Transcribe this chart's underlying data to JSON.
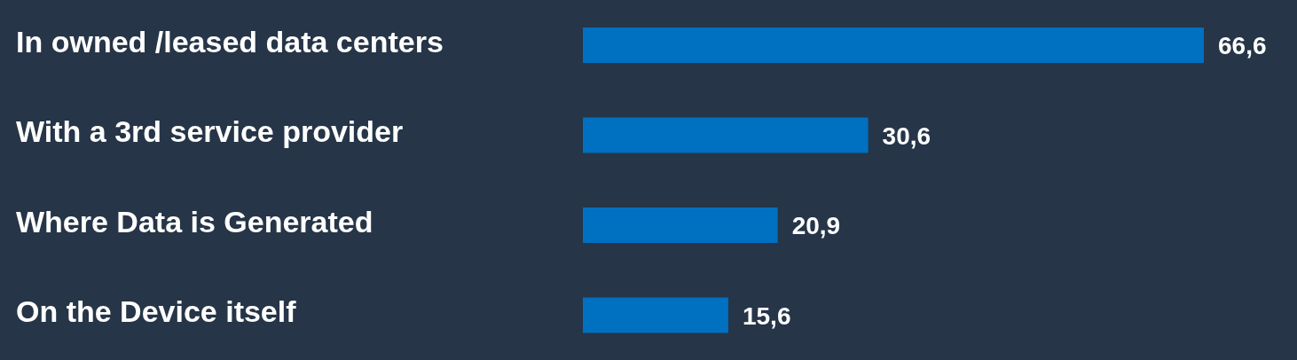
{
  "chart_data": {
    "type": "bar",
    "orientation": "horizontal",
    "categories": [
      "In owned /leased data centers",
      "With a 3rd service provider",
      "Where Data is Generated",
      "On the Device itself"
    ],
    "values": [
      66.6,
      30.6,
      20.9,
      15.6
    ],
    "color": "#0070c0",
    "value_labels": [
      "66,6",
      "30,6",
      "20,9",
      "15,6"
    ],
    "tick_labels": "y"
  }
}
